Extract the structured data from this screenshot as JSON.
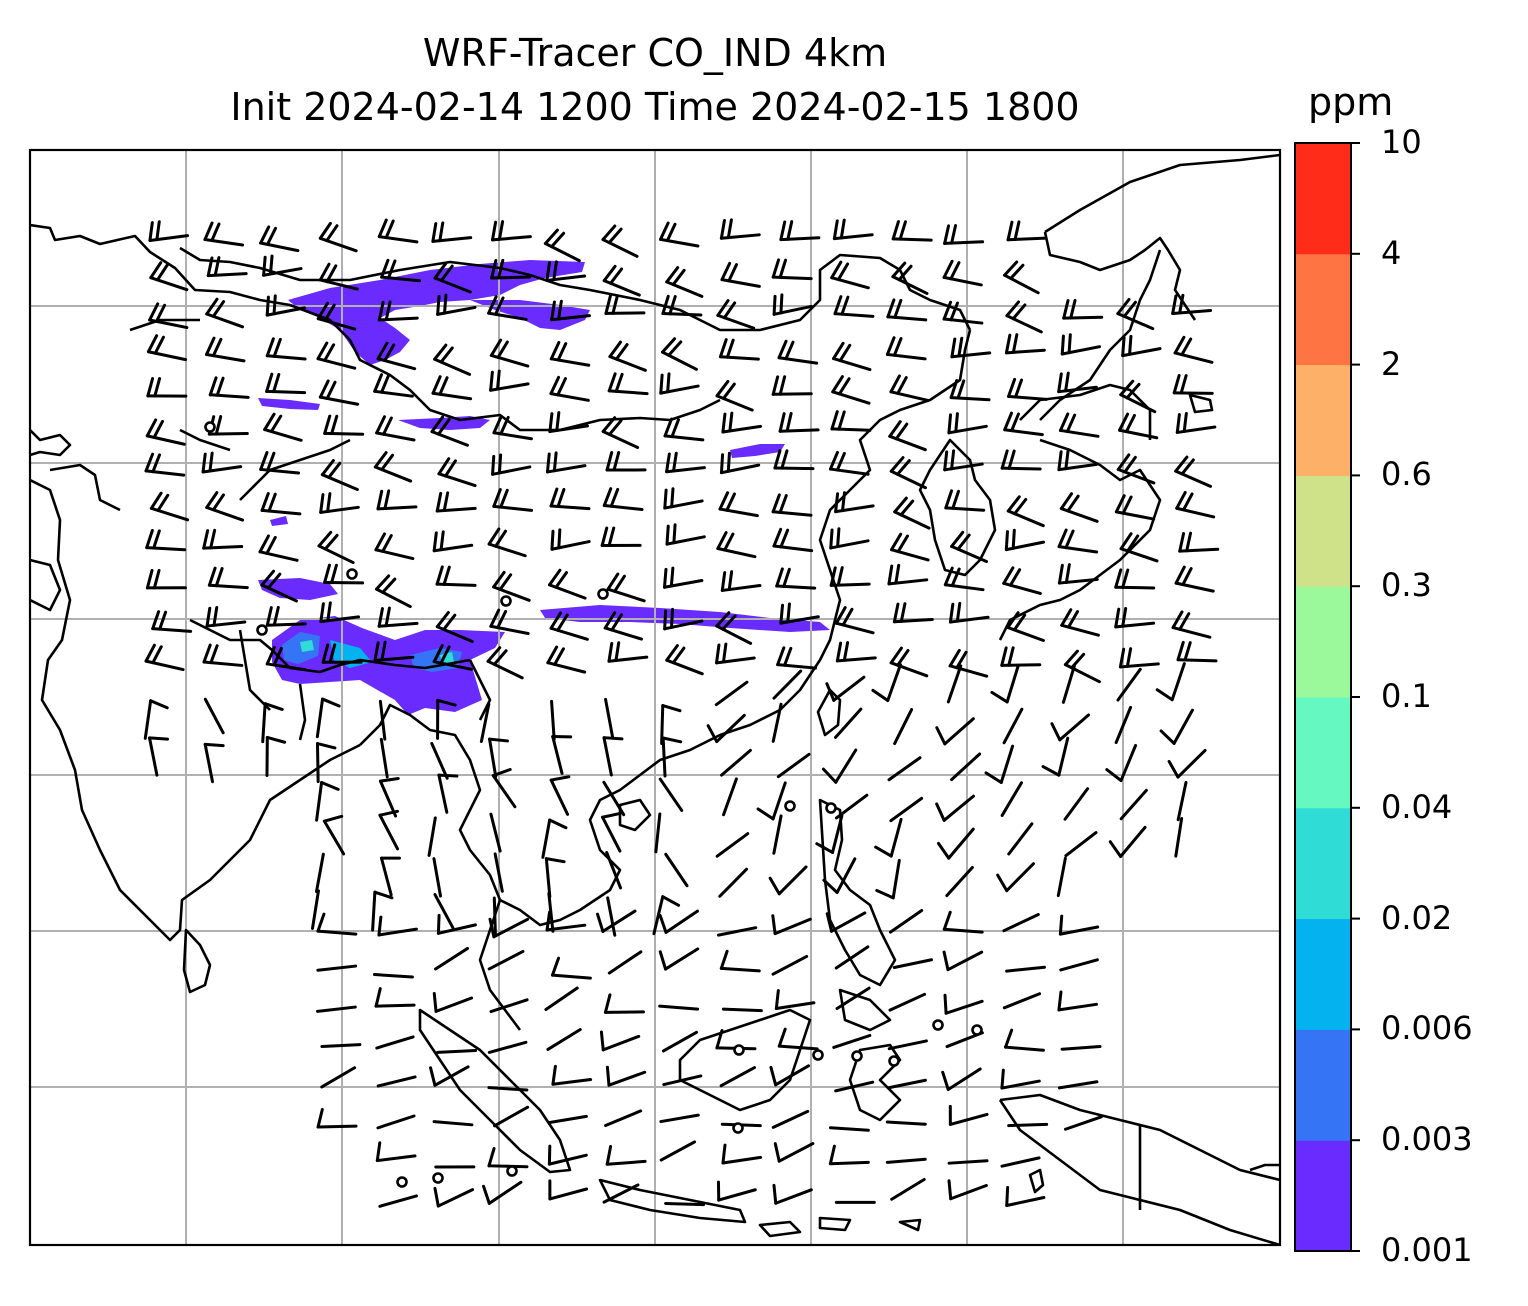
{
  "title": {
    "line1": "WRF-Tracer CO_IND 4km",
    "line2": "Init 2024-02-14 1200 Time 2024-02-15 1800"
  },
  "colorbar": {
    "unit": "ppm",
    "ticks": [
      "0.001",
      "0.003",
      "0.006",
      "0.02",
      "0.04",
      "0.1",
      "0.3",
      "0.6",
      "2",
      "4",
      "10"
    ],
    "colors": [
      "#6a2bff",
      "#3575f5",
      "#03b2ef",
      "#2fdcd6",
      "#65f8c0",
      "#9bf99b",
      "#cfe28a",
      "#fdb067",
      "#ff7443",
      "#ff2c1a"
    ]
  },
  "map": {
    "coastline_color": "#000000",
    "grid_color": "#b0b0b0",
    "tracer_color": "#6a2bff",
    "tracer_core_colors": [
      "#3575f5",
      "#03b2ef",
      "#2fdcd6"
    ]
  }
}
